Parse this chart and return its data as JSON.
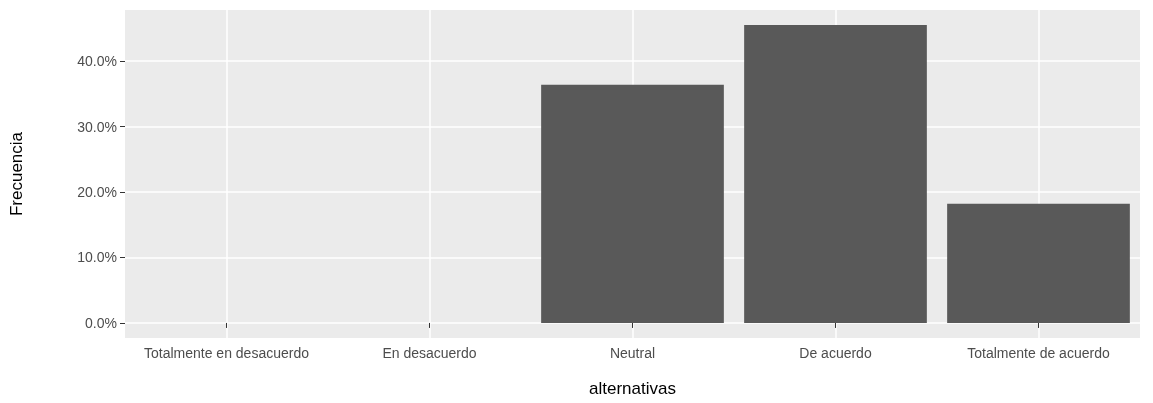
{
  "chart_data": {
    "type": "bar",
    "xlabel": "alternativas",
    "ylabel": "Frecuencia",
    "categories": [
      "Totalmente en desacuerdo",
      "En desacuerdo",
      "Neutral",
      "De acuerdo",
      "Totalmente de acuerdo"
    ],
    "values": [
      0,
      0,
      36.4,
      45.5,
      18.2
    ],
    "color": "#595959",
    "ylim": [
      -2.3,
      47.8
    ],
    "yticks": [
      {
        "value": 0,
        "label": "0.0%"
      },
      {
        "value": 10,
        "label": "10.0%"
      },
      {
        "value": 20,
        "label": "20.0%"
      },
      {
        "value": 30,
        "label": "30.0%"
      },
      {
        "value": 40,
        "label": "40.0%"
      }
    ],
    "grid": true
  }
}
